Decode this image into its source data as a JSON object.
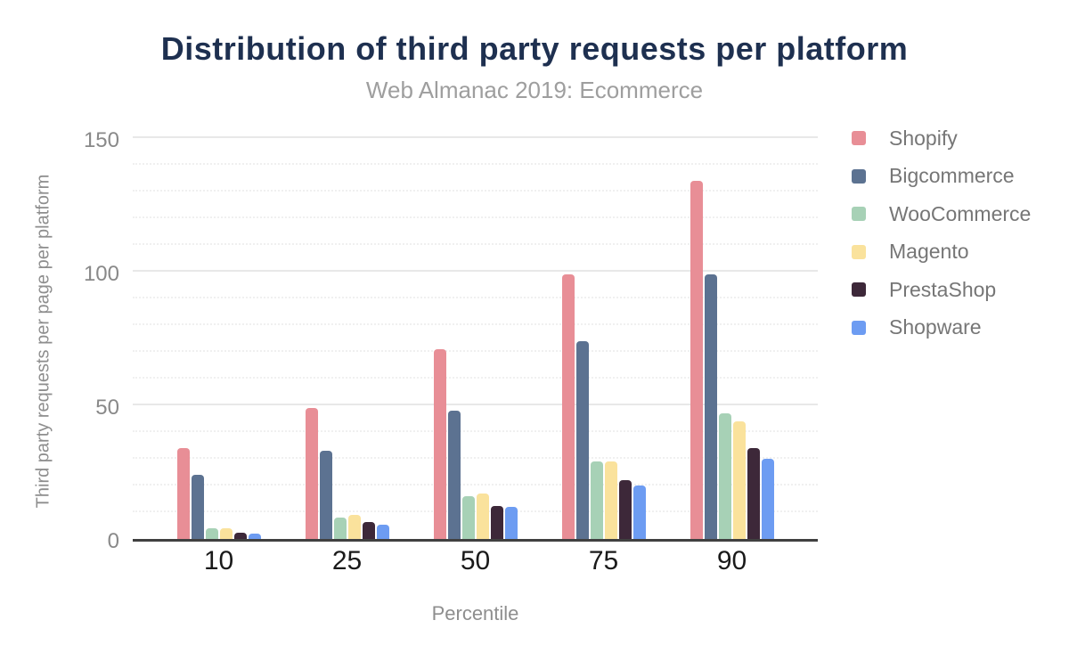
{
  "chart_data": {
    "type": "bar",
    "title": "Distribution of third party requests per platform",
    "subtitle": "Web Almanac 2019: Ecommerce",
    "xlabel": "Percentile",
    "ylabel": "Third party requests per page per platform",
    "categories": [
      "10",
      "25",
      "50",
      "75",
      "90"
    ],
    "series": [
      {
        "name": "Shopify",
        "color": "#e88e96",
        "values": [
          34,
          49,
          71,
          99,
          134
        ]
      },
      {
        "name": "Bigcommerce",
        "color": "#5c7291",
        "values": [
          24,
          33,
          48,
          74,
          99
        ]
      },
      {
        "name": "WooCommerce",
        "color": "#a7d1b6",
        "values": [
          4,
          8,
          16,
          29,
          47
        ]
      },
      {
        "name": "Magento",
        "color": "#fae29c",
        "values": [
          4,
          9,
          17,
          29,
          44
        ]
      },
      {
        "name": "PrestaShop",
        "color": "#3d2839",
        "values": [
          2.5,
          6.5,
          12.5,
          22,
          34
        ]
      },
      {
        "name": "Shopware",
        "color": "#6d9cf2",
        "values": [
          2,
          5.5,
          12,
          20,
          30
        ]
      }
    ],
    "ylim": [
      0,
      150
    ],
    "yticks": [
      0,
      50,
      100,
      150
    ],
    "minor_gridline_step": 10,
    "grid": "on",
    "legend_position": "right"
  },
  "colors": {
    "title": "#1e3050",
    "subtitle": "#9e9e9e",
    "y_tick_label": "#898989",
    "x_tick_label": "#1a1a1a",
    "axis_title": "#8e8e8e",
    "legend_label": "#767676",
    "baseline": "#404040",
    "gridline_major": "#e8e8e8",
    "gridline_minor": "#f0f0f0",
    "background": "#ffffff"
  }
}
